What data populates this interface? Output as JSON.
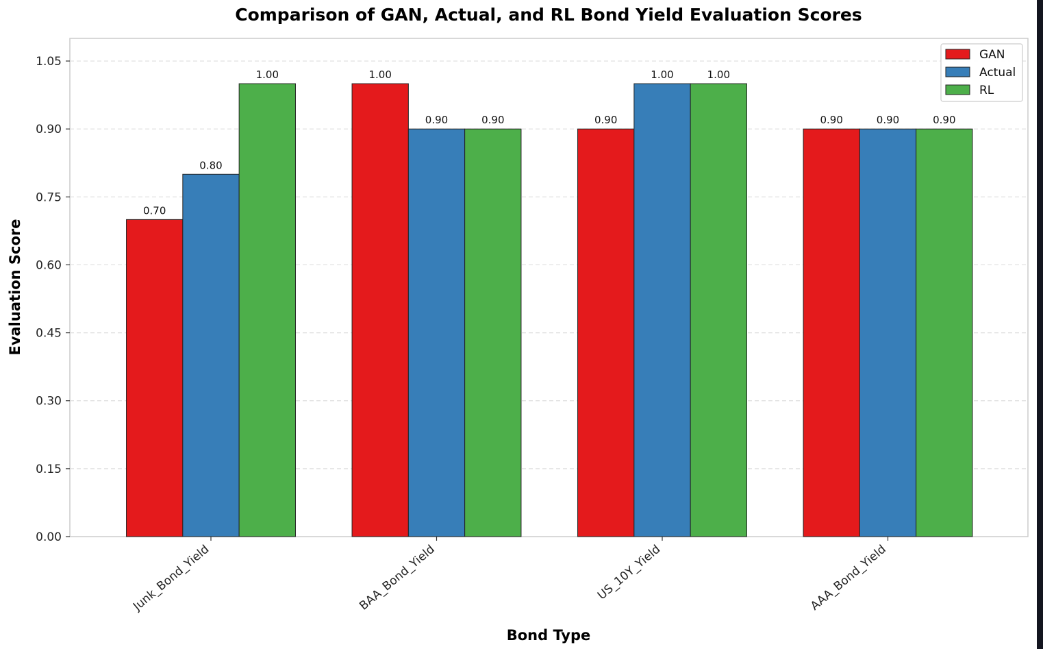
{
  "chart_data": {
    "type": "bar",
    "title": "Comparison of GAN, Actual, and RL Bond Yield Evaluation Scores",
    "xlabel": "Bond Type",
    "ylabel": "Evaluation Score",
    "categories": [
      "Junk_Bond_Yield",
      "BAA_Bond_Yield",
      "US_10Y_Yield",
      "AAA_Bond_Yield"
    ],
    "series": [
      {
        "name": "GAN",
        "color": "#e41a1c",
        "values": [
          0.7,
          1.0,
          0.9,
          0.9
        ]
      },
      {
        "name": "Actual",
        "color": "#377eb8",
        "values": [
          0.8,
          0.9,
          1.0,
          0.9
        ]
      },
      {
        "name": "RL",
        "color": "#4daf4a",
        "values": [
          1.0,
          0.9,
          1.0,
          0.9
        ]
      }
    ],
    "ylim": [
      0,
      1.1
    ],
    "yticks": [
      "0.00",
      "0.15",
      "0.30",
      "0.45",
      "0.60",
      "0.75",
      "0.90",
      "1.05"
    ],
    "value_labels": [
      [
        "0.70",
        "0.80",
        "1.00"
      ],
      [
        "1.00",
        "0.90",
        "0.90"
      ],
      [
        "0.90",
        "1.00",
        "1.00"
      ],
      [
        "0.90",
        "0.90",
        "0.90"
      ]
    ],
    "grid": "y-dashed",
    "legend_position": "top-right"
  }
}
